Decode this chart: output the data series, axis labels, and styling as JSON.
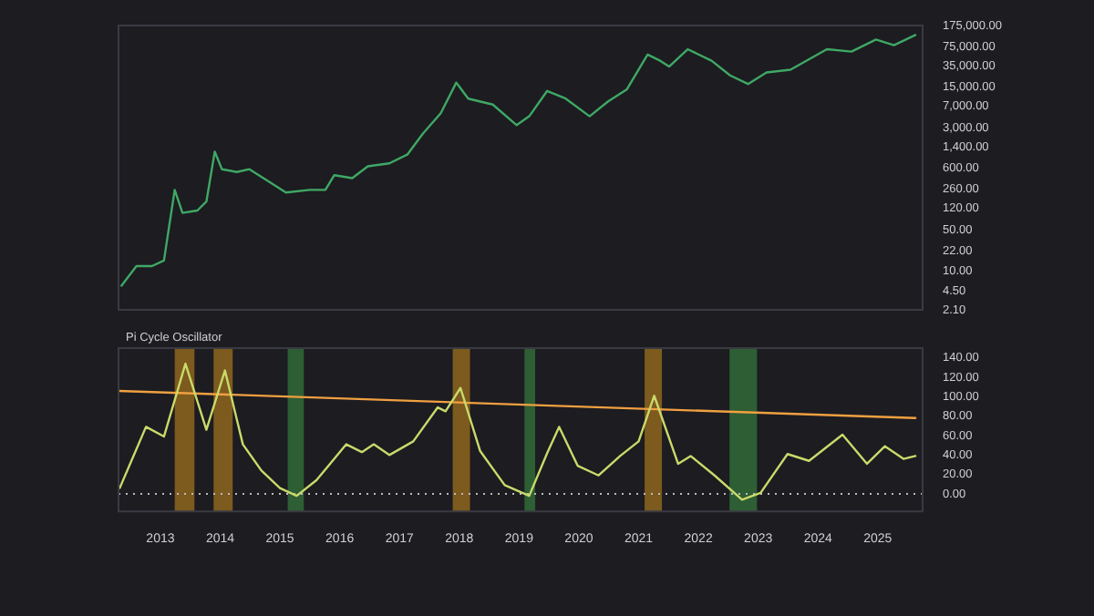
{
  "chart_data": [
    {
      "type": "line",
      "log": true,
      "xlim": [
        2012.3,
        2025.75
      ],
      "ylim": [
        2.1,
        175000
      ],
      "tick_labels": "y",
      "yticks": [
        {
          "value": 2.1,
          "label": "2.10"
        },
        {
          "value": 4.5,
          "label": "4.50"
        },
        {
          "value": 10,
          "label": "10.00"
        },
        {
          "value": 22,
          "label": "22.00"
        },
        {
          "value": 50,
          "label": "50.00"
        },
        {
          "value": 120,
          "label": "120.00"
        },
        {
          "value": 260,
          "label": "260.00"
        },
        {
          "value": 600,
          "label": "600.00"
        },
        {
          "value": 1400,
          "label": "1,400.00"
        },
        {
          "value": 3000,
          "label": "3,000.00"
        },
        {
          "value": 7000,
          "label": "7,000.00"
        },
        {
          "value": 15000,
          "label": "15,000.00"
        },
        {
          "value": 35000,
          "label": "35,000.00"
        },
        {
          "value": 75000,
          "label": "75,000.00"
        },
        {
          "value": 175000,
          "label": "175,000.00"
        }
      ],
      "series": [
        {
          "color": "#3fa865",
          "x": [
            2012.35,
            2012.6,
            2012.86,
            2013.06,
            2013.24,
            2013.37,
            2013.62,
            2013.77,
            2013.91,
            2014.03,
            2014.28,
            2014.49,
            2014.79,
            2015.1,
            2015.5,
            2015.76,
            2015.91,
            2016.21,
            2016.47,
            2016.83,
            2017.13,
            2017.39,
            2017.69,
            2017.95,
            2018.15,
            2018.56,
            2018.96,
            2019.17,
            2019.47,
            2019.78,
            2020.18,
            2020.49,
            2020.8,
            2021.15,
            2021.36,
            2021.51,
            2021.82,
            2022.22,
            2022.53,
            2022.83,
            2023.14,
            2023.54,
            2024.15,
            2024.56,
            2024.97,
            2025.27,
            2025.63
          ],
          "values": [
            5.5,
            12,
            12,
            15,
            250,
            100,
            110,
            157,
            1150,
            570,
            510,
            570,
            360,
            225,
            250,
            250,
            450,
            400,
            640,
            720,
            1020,
            2340,
            5300,
            18000,
            9500,
            7500,
            3300,
            4700,
            12900,
            9500,
            4700,
            8500,
            13600,
            55000,
            43000,
            34000,
            68000,
            43000,
            24000,
            17000,
            27000,
            30000,
            68000,
            62000,
            100000,
            80000,
            120000
          ]
        }
      ]
    },
    {
      "type": "line",
      "title": "Pi Cycle Oscillator",
      "xlim": [
        2012.3,
        2025.75
      ],
      "ylim": [
        -18,
        150
      ],
      "xticks": [
        2013,
        2014,
        2015,
        2016,
        2017,
        2018,
        2019,
        2020,
        2021,
        2022,
        2023,
        2024,
        2025
      ],
      "yticks": [
        {
          "value": 0,
          "label": "0.00"
        },
        {
          "value": 20,
          "label": "20.00"
        },
        {
          "value": 40,
          "label": "40.00"
        },
        {
          "value": 60,
          "label": "60.00"
        },
        {
          "value": 80,
          "label": "80.00"
        },
        {
          "value": 100,
          "label": "100.00"
        },
        {
          "value": 120,
          "label": "120.00"
        },
        {
          "value": 140,
          "label": "140.00"
        }
      ],
      "series": [
        {
          "color": "#c9da6a",
          "x": [
            2012.32,
            2012.76,
            2013.06,
            2013.42,
            2013.77,
            2014.08,
            2014.38,
            2014.69,
            2015.0,
            2015.28,
            2015.61,
            2016.11,
            2016.37,
            2016.57,
            2016.83,
            2017.23,
            2017.64,
            2017.77,
            2018.02,
            2018.35,
            2018.76,
            2019.17,
            2019.47,
            2019.67,
            2019.98,
            2020.33,
            2020.69,
            2021.0,
            2021.26,
            2021.66,
            2021.87,
            2022.27,
            2022.73,
            2023.04,
            2023.49,
            2023.85,
            2024.41,
            2024.82,
            2025.12,
            2025.43,
            2025.63
          ],
          "values": [
            6,
            69,
            59,
            134,
            66,
            127,
            51,
            24,
            6,
            -2,
            14,
            51,
            43,
            51,
            40,
            54,
            89,
            85,
            109,
            44,
            9,
            -2,
            42,
            69,
            29,
            19,
            39,
            54,
            101,
            31,
            39,
            19,
            -6,
            1,
            41,
            34,
            61,
            31,
            49,
            36,
            39
          ]
        },
        {
          "color": "#f0a040",
          "x": [
            2012.3,
            2025.63
          ],
          "values": [
            106,
            78
          ]
        }
      ],
      "bands": [
        {
          "axis": "x",
          "from": 2013.24,
          "to": 2013.57,
          "color": "#7d5a1e"
        },
        {
          "axis": "x",
          "from": 2013.89,
          "to": 2014.21,
          "color": "#7d5a1e"
        },
        {
          "axis": "x",
          "from": 2017.89,
          "to": 2018.18,
          "color": "#7d5a1e"
        },
        {
          "axis": "x",
          "from": 2021.1,
          "to": 2021.39,
          "color": "#7d5a1e"
        },
        {
          "axis": "x",
          "from": 2015.13,
          "to": 2015.4,
          "color": "#2e5e34"
        },
        {
          "axis": "x",
          "from": 2019.09,
          "to": 2019.27,
          "color": "#2e5e34"
        },
        {
          "axis": "x",
          "from": 2022.52,
          "to": 2022.98,
          "color": "#2e5e34"
        }
      ],
      "ref_lines": [
        {
          "axis": "y",
          "value": 0,
          "color": "#bbbbbb",
          "line_style": "dotted"
        }
      ]
    }
  ]
}
